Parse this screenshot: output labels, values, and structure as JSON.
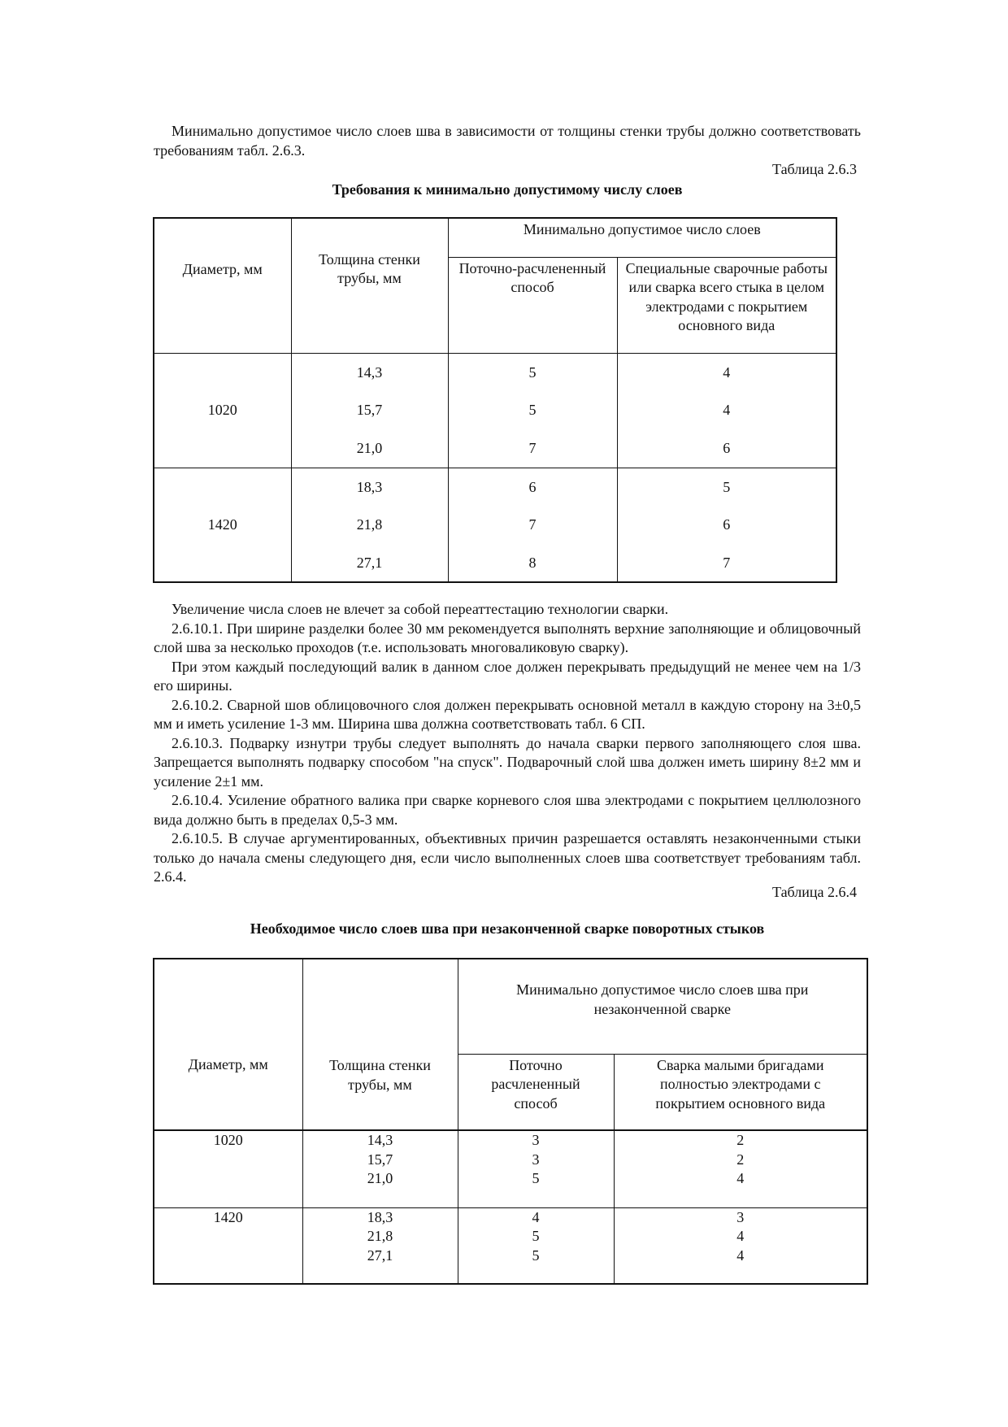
{
  "intro": "Минимально допустимое число слоев шва в зависимости от толщины стенки трубы должно соответствовать требованиям табл. 2.6.3.",
  "table1": {
    "label": "Таблица 2.6.3",
    "title": "Требования к минимально допустимому числу слоев",
    "headers": {
      "diameter": "Диаметр, мм",
      "thickness": "Толщина стенки трубы, мм",
      "group": "Минимально допустимое число слоев",
      "col_a": "Поточно-расчлененный способ",
      "col_b": "Специальные сварочные работы или сварка всего стыка в целом электродами с покрытием основного вида"
    },
    "groups": [
      {
        "diameter": "1020",
        "rows": [
          [
            "14,3",
            "5",
            "4"
          ],
          [
            "15,7",
            "5",
            "4"
          ],
          [
            "21,0",
            "7",
            "6"
          ]
        ]
      },
      {
        "diameter": "1420",
        "rows": [
          [
            "18,3",
            "6",
            "5"
          ],
          [
            "21,8",
            "7",
            "6"
          ],
          [
            "27,1",
            "8",
            "7"
          ]
        ]
      }
    ]
  },
  "paragraphs": [
    "Увеличение числа слоев не влечет за собой переаттестацию технологии сварки.",
    "2.6.10.1. При ширине разделки более 30 мм рекомендуется выполнять верхние заполняющие и облицовочный слой шва за несколько проходов (т.е. использовать многоваликовую сварку).",
    "При этом каждый последующий валик в данном слое должен перекрывать предыдущий не менее чем на 1/3 его ширины.",
    "2.6.10.2. Сварной шов облицовочного слоя должен перекрывать основной металл в каждую сторону на 3±0,5 мм и иметь усиление 1-3 мм. Ширина шва должна соответствовать табл. 6 СП.",
    "2.6.10.3. Подварку изнутри трубы следует выполнять до начала сварки первого заполняющего слоя шва. Запрещается выполнять подварку способом \"на спуск\". Подварочный слой шва должен иметь ширину 8±2 мм и усиление 2±1 мм.",
    "2.6.10.4. Усиление обратного валика при сварке корневого слоя шва электродами с покрытием целлюлозного вида должно быть в пределах 0,5-3 мм.",
    "2.6.10.5. В случае аргументированных, объективных причин разрешается оставлять незаконченными стыки только до начала смены следующего дня, если число выполненных слоев шва соответствует требованиям табл. 2.6.4."
  ],
  "table2": {
    "label": "Таблица 2.6.4",
    "title": "Необходимое число слоев шва при незаконченной сварке поворотных стыков",
    "headers": {
      "diameter": "Диаметр, мм",
      "thickness": "Толщина стенки трубы, мм",
      "group": "Минимально допустимое число слоев шва при незаконченной сварке",
      "col_a": "Поточно расчлененный способ",
      "col_b": "Сварка малыми бригадами полностью электродами с покрытием основного вида"
    },
    "groups": [
      {
        "diameter": "1020",
        "thickness": [
          "14,3",
          "15,7",
          "21,0"
        ],
        "a": [
          "3",
          "3",
          "5"
        ],
        "b": [
          "2",
          "2",
          "4"
        ]
      },
      {
        "diameter": "1420",
        "thickness": [
          "18,3",
          "21,8",
          "27,1"
        ],
        "a": [
          "4",
          "5",
          "5"
        ],
        "b": [
          "3",
          "4",
          "4"
        ]
      }
    ]
  }
}
